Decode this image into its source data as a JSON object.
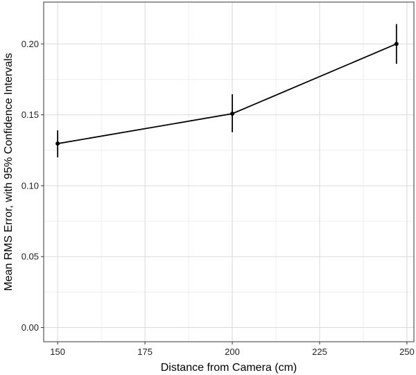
{
  "chart_data": {
    "type": "line",
    "title": "",
    "xlabel": "Distance from Camera (cm)",
    "ylabel": "Mean RMS Error, with 95% Confidence Intervals",
    "xlim": [
      146,
      252
    ],
    "ylim": [
      -0.01,
      0.2295
    ],
    "x_ticks": [
      150,
      175,
      200,
      225,
      250
    ],
    "y_ticks": [
      0.0,
      0.05,
      0.1,
      0.15,
      0.2
    ],
    "x_tick_labels": [
      "150",
      "175",
      "200",
      "225",
      "250"
    ],
    "y_tick_labels": [
      "0.00",
      "0.05",
      "0.10",
      "0.15",
      "0.20"
    ],
    "grid": true,
    "legend": "none",
    "series": [
      {
        "x": [
          150,
          200,
          247
        ],
        "y": [
          0.1297,
          0.1508,
          0.2
        ],
        "ci_lower": [
          0.12,
          0.1377,
          0.186
        ],
        "ci_upper": [
          0.139,
          0.1645,
          0.214
        ]
      }
    ],
    "colors": {
      "line": "#000000",
      "grid_major": "#d9d9d9",
      "grid_minor": "#efefef",
      "panel_border": "#333333"
    }
  }
}
